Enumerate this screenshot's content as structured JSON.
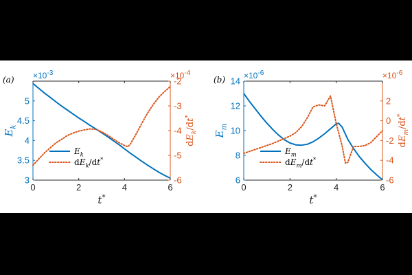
{
  "colors": {
    "blue": "#0072BD",
    "orange": "#D95319",
    "axis": "#262626",
    "background": "#000000",
    "panel": "#ffffff"
  },
  "chart_data": [
    {
      "type": "line",
      "panel_label": "(a)",
      "xlabel": "t*",
      "ylabel_left": "Ek",
      "ylabel_right": "dEk/dt*",
      "left_exponent": "×10-3",
      "right_exponent": "×10-4",
      "xlim": [
        0,
        6
      ],
      "ylim_left": [
        3,
        5.5
      ],
      "ylim_right": [
        -6,
        -2
      ],
      "x_ticks": [
        0,
        2,
        4,
        6
      ],
      "y_left_ticks": [
        3,
        3.5,
        4,
        4.5,
        5
      ],
      "y_left_tick_labels": [
        "3",
        "3.5",
        "4",
        "4.5",
        "5"
      ],
      "y_right_ticks": [
        -6,
        -5,
        -4,
        -3,
        -2
      ],
      "legend_position": "bottom-left",
      "series": [
        {
          "name": "Ek",
          "axis": "left",
          "style": "solid",
          "x": [
            0,
            0.25,
            0.5,
            0.75,
            1,
            1.25,
            1.5,
            1.75,
            2,
            2.25,
            2.5,
            2.75,
            3,
            3.25,
            3.5,
            3.75,
            4,
            4.25,
            4.5,
            4.75,
            5,
            5.25,
            5.5,
            5.75,
            6
          ],
          "values": [
            5.44,
            5.32,
            5.2,
            5.09,
            4.98,
            4.87,
            4.77,
            4.67,
            4.57,
            4.48,
            4.38,
            4.29,
            4.2,
            4.1,
            4.0,
            3.9,
            3.79,
            3.68,
            3.58,
            3.48,
            3.38,
            3.29,
            3.2,
            3.12,
            3.05
          ]
        },
        {
          "name": "dEk/dt*",
          "axis": "right",
          "style": "dotted",
          "x": [
            0,
            0.25,
            0.5,
            0.75,
            1,
            1.25,
            1.5,
            1.75,
            2,
            2.25,
            2.5,
            2.75,
            3,
            3.25,
            3.5,
            3.75,
            4,
            4.15,
            4.25,
            4.5,
            4.75,
            5,
            5.25,
            5.5,
            5.75,
            6
          ],
          "values": [
            -5.4,
            -5.15,
            -4.9,
            -4.7,
            -4.5,
            -4.35,
            -4.2,
            -4.1,
            -4.02,
            -3.97,
            -3.93,
            -3.95,
            -4.05,
            -4.18,
            -4.33,
            -4.48,
            -4.6,
            -4.65,
            -4.55,
            -4.15,
            -3.72,
            -3.3,
            -2.95,
            -2.65,
            -2.42,
            -2.22
          ]
        }
      ]
    },
    {
      "type": "line",
      "panel_label": "(b)",
      "xlabel": "t*",
      "ylabel_left": "Em",
      "ylabel_right": "dEm/dt*",
      "left_exponent": "×10-6",
      "right_exponent": "×10-6",
      "xlim": [
        0,
        6
      ],
      "ylim_left": [
        6,
        14
      ],
      "ylim_right": [
        -6,
        4
      ],
      "x_ticks": [
        0,
        2,
        4,
        6
      ],
      "y_left_ticks": [
        6,
        8,
        10,
        12,
        14
      ],
      "y_left_tick_labels": [
        "6",
        "8",
        "10",
        "12",
        "14"
      ],
      "y_right_ticks": [
        -6,
        -4,
        -2,
        0,
        2
      ],
      "legend_position": "bottom-left",
      "series": [
        {
          "name": "Em",
          "axis": "left",
          "style": "solid",
          "x": [
            0,
            0.25,
            0.5,
            0.75,
            1,
            1.25,
            1.5,
            1.75,
            2,
            2.25,
            2.5,
            2.75,
            3,
            3.25,
            3.5,
            3.75,
            4,
            4.1,
            4.25,
            4.5,
            4.75,
            5,
            5.25,
            5.5,
            5.75,
            6
          ],
          "values": [
            13.0,
            12.35,
            11.75,
            11.15,
            10.6,
            10.1,
            9.65,
            9.27,
            9.0,
            8.85,
            8.82,
            8.9,
            9.1,
            9.4,
            9.75,
            10.15,
            10.55,
            10.6,
            10.3,
            9.3,
            8.55,
            7.9,
            7.35,
            6.85,
            6.42,
            6.02
          ]
        },
        {
          "name": "dEm/dt*",
          "axis": "right",
          "style": "dotted",
          "x": [
            0,
            0.25,
            0.5,
            0.75,
            1,
            1.25,
            1.5,
            1.75,
            2,
            2.25,
            2.5,
            2.75,
            3,
            3.25,
            3.5,
            3.75,
            4,
            4.25,
            4.4,
            4.5,
            4.75,
            5,
            5.25,
            5.5,
            5.75,
            6
          ],
          "values": [
            -3.3,
            -3.1,
            -2.9,
            -2.7,
            -2.5,
            -2.3,
            -2.05,
            -1.8,
            -1.55,
            -1.2,
            -0.6,
            0.3,
            1.4,
            1.6,
            1.5,
            2.5,
            -0.3,
            -2.5,
            -4.3,
            -4.2,
            -2.6,
            -2.6,
            -2.5,
            -2.2,
            -1.6,
            -1.0
          ]
        }
      ]
    }
  ]
}
